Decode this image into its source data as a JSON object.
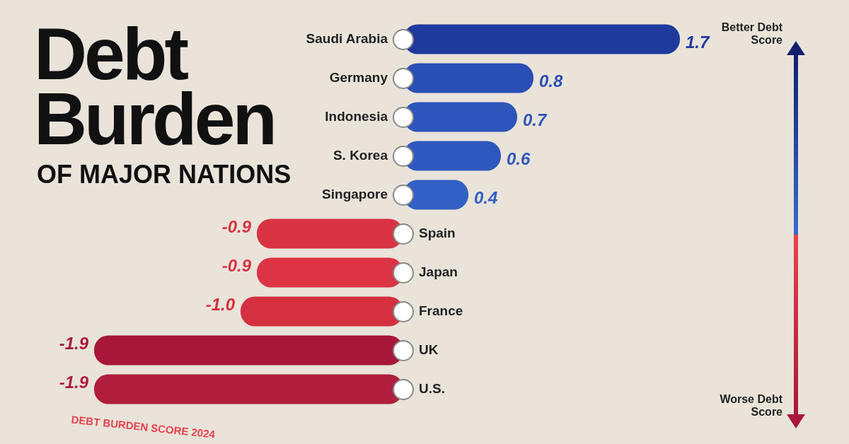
{
  "chart_data": {
    "type": "bar",
    "orientation": "horizontal",
    "title": "Debt Burden",
    "subtitle": "OF MAJOR NATIONS",
    "categories": [
      "Saudi Arabia",
      "Germany",
      "Indonesia",
      "S. Korea",
      "Singapore",
      "Spain",
      "Japan",
      "France",
      "UK",
      "U.S."
    ],
    "values": [
      1.7,
      0.8,
      0.7,
      0.6,
      0.4,
      -0.9,
      -0.9,
      -1.0,
      -1.9,
      -1.9
    ],
    "colors": [
      "#1f3a9c",
      "#2a4fb5",
      "#2e55bb",
      "#2f58be",
      "#3360c4",
      "#d93343",
      "#dc3444",
      "#d4303f",
      "#a8173a",
      "#b01d3d"
    ],
    "value_labels": [
      "1.7",
      "0.8",
      "0.7",
      "0.6",
      "0.4",
      "-0.9",
      "-0.9",
      "-1.0",
      "-1.9",
      "-1.9"
    ],
    "annotations": [
      "Better Debt Score",
      "Worse Debt Score",
      "DEBT BURDEN SCORE 2024"
    ]
  }
}
